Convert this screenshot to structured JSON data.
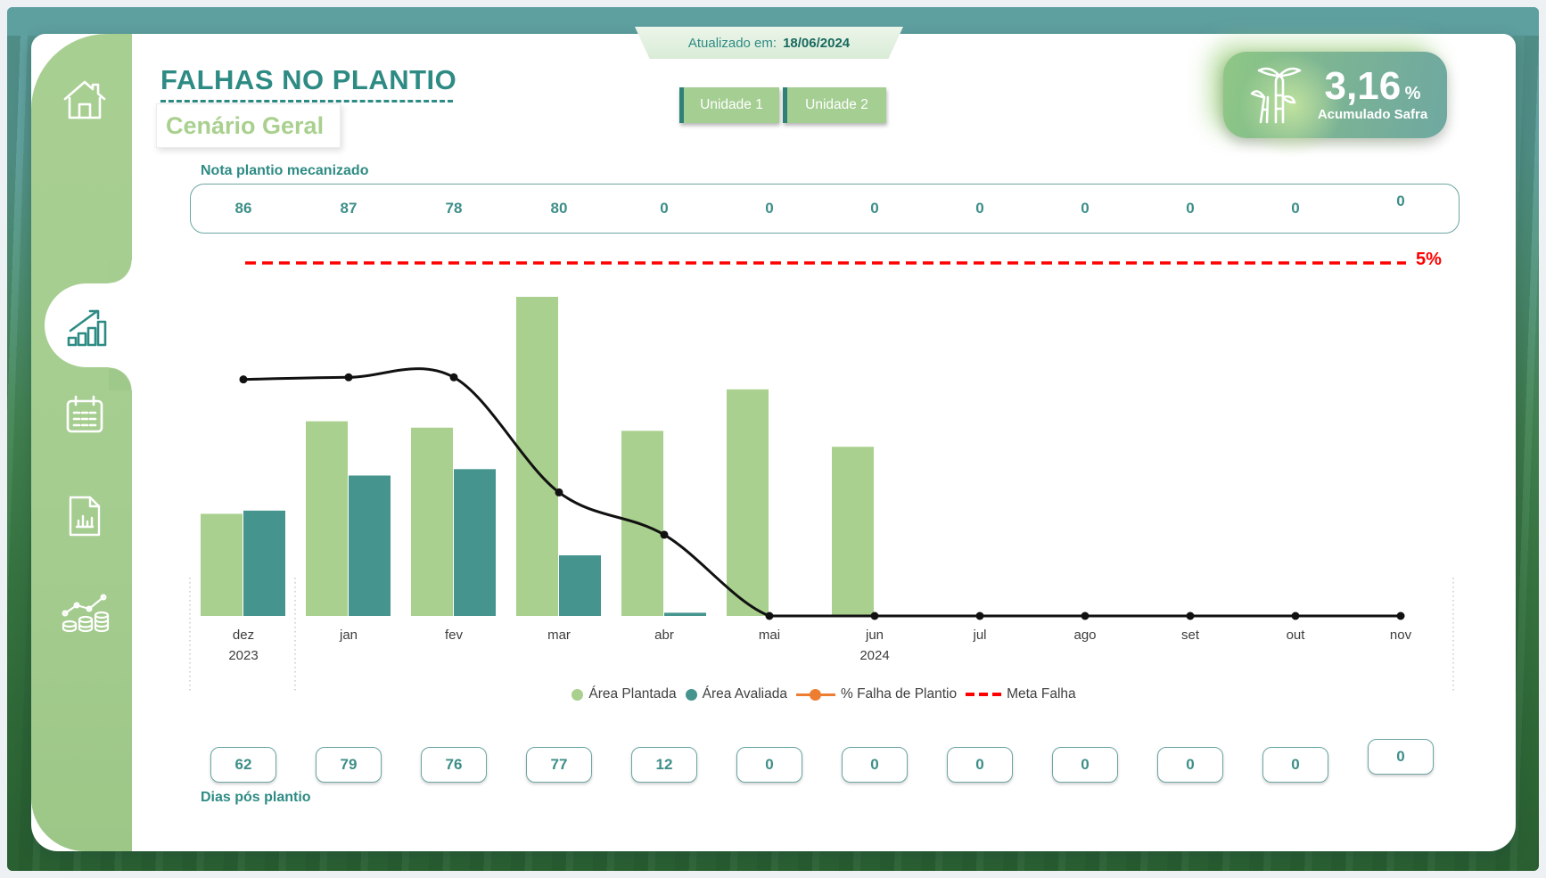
{
  "updated": {
    "label": "Atualizado em:",
    "date": "18/06/2024"
  },
  "header": {
    "title": "FALHAS NO PLANTIO",
    "subtitle": "Cenário Geral"
  },
  "units": [
    {
      "label": "Unidade 1"
    },
    {
      "label": "Unidade 2"
    }
  ],
  "kpi": {
    "value": "3,16",
    "unit": "%",
    "label": "Acumulado Safra",
    "icon": "sugarcane-icon"
  },
  "sidebar": {
    "items": [
      {
        "icon": "home-icon",
        "active": false
      },
      {
        "icon": "bar-chart-icon",
        "active": true
      },
      {
        "icon": "calendar-icon",
        "active": false
      },
      {
        "icon": "report-icon",
        "active": false
      },
      {
        "icon": "finance-icon",
        "active": false
      }
    ]
  },
  "nota_plantio": {
    "label": "Nota plantio mecanizado",
    "values": [
      86,
      87,
      78,
      80,
      0,
      0,
      0,
      0,
      0,
      0,
      0,
      0
    ]
  },
  "dias_pos_plantio": {
    "label": "Dias pós plantio",
    "values": [
      62,
      79,
      76,
      77,
      12,
      0,
      0,
      0,
      0,
      0,
      0,
      0
    ]
  },
  "chart_data": {
    "type": "combo-bar-line",
    "categories": [
      "dez",
      "jan",
      "fev",
      "mar",
      "abr",
      "mai",
      "jun",
      "jul",
      "ago",
      "set",
      "out",
      "nov"
    ],
    "year_labels": [
      {
        "index": 0,
        "label": "2023"
      },
      {
        "index": 6,
        "label": "2024"
      }
    ],
    "bar_axis_max": 100,
    "bar_series": [
      {
        "name": "Área Plantada",
        "color": "#A9D08E",
        "values": [
          32,
          61,
          59,
          100,
          58,
          71,
          53,
          0,
          0,
          0,
          0,
          0
        ]
      },
      {
        "name": "Área Avaliada",
        "color": "#45948E",
        "values": [
          33,
          44,
          46,
          19,
          1,
          0,
          0,
          0,
          0,
          0,
          0,
          0
        ]
      }
    ],
    "line_series": {
      "name": "% Falha de Plantio",
      "legend_color": "#ED7D31",
      "line_color": "#111111",
      "values_percent": [
        3.35,
        3.38,
        3.38,
        1.75,
        1.15,
        0,
        0,
        0,
        0,
        0,
        0,
        0
      ]
    },
    "reference_line": {
      "name": "Meta Falha",
      "color": "#FF0000",
      "value_percent": 5,
      "label": "5%"
    },
    "percent_axis": {
      "min": 0,
      "shown_max": 5
    },
    "grid": false,
    "legend_position": "bottom"
  },
  "legend": [
    {
      "marker": "dot",
      "color": "#A9D08E",
      "label": "Área Plantada"
    },
    {
      "marker": "dot",
      "color": "#45948E",
      "label": "Área Avaliada"
    },
    {
      "marker": "line-dot",
      "color": "#ED7D31",
      "label": "% Falha de Plantio"
    },
    {
      "marker": "dashes",
      "color": "#FF0000",
      "label": "Meta Falha"
    }
  ],
  "colors": {
    "teal_dark": "#2E8B84",
    "teal_border": "#6BA5A3",
    "band_teal": "#5E9FA0",
    "sidebar_green": "#A6CD90",
    "button_green": "#A5CE93",
    "bar_green": "#A9D08E",
    "bar_teal": "#45948E",
    "red": "#FF0000",
    "orange": "#ED7D31"
  }
}
